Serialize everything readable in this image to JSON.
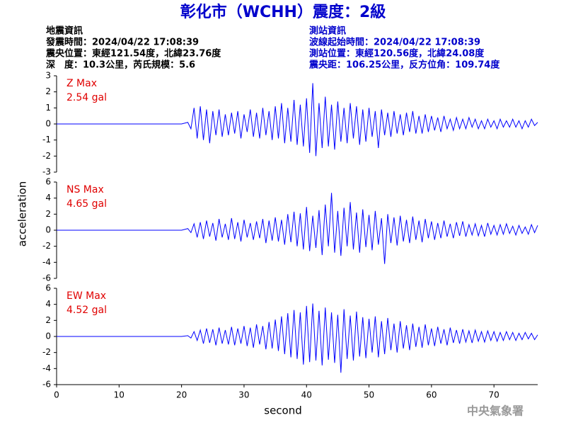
{
  "header": {
    "title": "彰化市（WCHH）震度：2級",
    "left": [
      "地震資訊",
      "發震時間：2024/04/22 17:08:39",
      "震央位置：東經121.54度，北緯23.76度",
      "深　度：10.3公里，芮氏規模：5.6"
    ],
    "right": [
      "測站資訊",
      "波線起始時間：2024/04/22 17:08:39",
      "測站位置：東經120.56度，北緯24.08度",
      "震央距：106.25公里，反方位角：109.74度"
    ]
  },
  "y_label": "acceleration",
  "footer": "中央氣象署",
  "chart_data": [
    {
      "type": "line",
      "label": "Z Max",
      "max_label": "2.54 gal",
      "color": "#0000ff",
      "ylim": [
        -3,
        3
      ],
      "yticks": [
        3,
        2,
        1,
        0,
        -1,
        -2,
        -3
      ],
      "xlim": [
        0,
        77
      ],
      "x": [
        0,
        5,
        10,
        15,
        20,
        21,
        21.5,
        22,
        22.5,
        23,
        23.5,
        24,
        24.5,
        25,
        25.5,
        26,
        26.5,
        27,
        27.5,
        28,
        28.5,
        29,
        29.5,
        30,
        30.5,
        31,
        31.5,
        32,
        32.5,
        33,
        33.5,
        34,
        34.5,
        35,
        35.5,
        36,
        36.5,
        37,
        37.5,
        38,
        38.5,
        39,
        39.5,
        40,
        40.5,
        41,
        41.5,
        42,
        42.5,
        43,
        43.5,
        44,
        44.5,
        45,
        45.5,
        46,
        46.5,
        47,
        47.5,
        48,
        48.5,
        49,
        49.5,
        50,
        50.5,
        51,
        51.5,
        52,
        52.5,
        53,
        53.5,
        54,
        54.5,
        55,
        55.5,
        56,
        56.5,
        57,
        57.5,
        58,
        58.5,
        59,
        59.5,
        60,
        60.5,
        61,
        61.5,
        62,
        62.5,
        63,
        63.5,
        64,
        64.5,
        65,
        65.5,
        66,
        66.5,
        67,
        67.5,
        68,
        68.5,
        69,
        69.5,
        70,
        70.5,
        71,
        71.5,
        72,
        72.5,
        73,
        73.5,
        74,
        74.5,
        75,
        75.5,
        76,
        76.5,
        77
      ],
      "values": [
        0,
        0,
        0,
        0,
        0,
        0.1,
        -0.3,
        1.0,
        -0.9,
        1.1,
        -1.0,
        0.9,
        -1.2,
        0.8,
        -0.7,
        0.9,
        -0.8,
        0.6,
        -0.7,
        0.7,
        -0.6,
        0.8,
        -0.9,
        0.6,
        -0.5,
        0.9,
        -0.8,
        0.7,
        -0.9,
        1.0,
        -0.7,
        0.8,
        -1.0,
        1.1,
        -0.9,
        1.3,
        -1.2,
        1.0,
        -1.1,
        1.5,
        -1.3,
        1.2,
        -1.4,
        1.6,
        -1.8,
        2.54,
        -2.0,
        1.3,
        -1.5,
        1.7,
        -1.4,
        1.2,
        -1.6,
        1.4,
        -1.1,
        1.0,
        -1.2,
        1.3,
        -0.9,
        1.1,
        -1.3,
        0.9,
        -1.1,
        1.0,
        -0.8,
        0.8,
        -1.5,
        0.9,
        -0.7,
        0.7,
        -0.8,
        0.8,
        -0.6,
        0.6,
        -0.7,
        0.7,
        -0.5,
        0.8,
        -0.6,
        0.5,
        -0.6,
        0.6,
        -0.5,
        0.5,
        -0.4,
        0.4,
        -0.5,
        0.5,
        -0.3,
        0.3,
        -0.4,
        0.4,
        -0.3,
        0.3,
        -0.3,
        0.4,
        -0.2,
        0.3,
        -0.3,
        0.2,
        -0.3,
        0.3,
        -0.2,
        0.2,
        -0.3,
        0.3,
        -0.2,
        0.2,
        -0.2,
        0.3,
        -0.2,
        0.2,
        -0.3,
        0.2,
        -0.2,
        0.3,
        -0.1,
        0.1
      ]
    },
    {
      "type": "line",
      "label": "NS Max",
      "max_label": "4.65 gal",
      "color": "#0000ff",
      "ylim": [
        -6,
        6
      ],
      "yticks": [
        6,
        4,
        2,
        0,
        -2,
        -4,
        -6
      ],
      "xlim": [
        0,
        77
      ],
      "x": [
        0,
        5,
        10,
        15,
        20,
        21,
        21.5,
        22,
        22.5,
        23,
        23.5,
        24,
        24.5,
        25,
        25.5,
        26,
        26.5,
        27,
        27.5,
        28,
        28.5,
        29,
        29.5,
        30,
        30.5,
        31,
        31.5,
        32,
        32.5,
        33,
        33.5,
        34,
        34.5,
        35,
        35.5,
        36,
        36.5,
        37,
        37.5,
        38,
        38.5,
        39,
        39.5,
        40,
        40.5,
        41,
        41.5,
        42,
        42.5,
        43,
        43.5,
        44,
        44.5,
        45,
        45.5,
        46,
        46.5,
        47,
        47.5,
        48,
        48.5,
        49,
        49.5,
        50,
        50.5,
        51,
        51.5,
        52,
        52.5,
        53,
        53.5,
        54,
        54.5,
        55,
        55.5,
        56,
        56.5,
        57,
        57.5,
        58,
        58.5,
        59,
        59.5,
        60,
        60.5,
        61,
        61.5,
        62,
        62.5,
        63,
        63.5,
        64,
        64.5,
        65,
        65.5,
        66,
        66.5,
        67,
        67.5,
        68,
        68.5,
        69,
        69.5,
        70,
        70.5,
        71,
        71.5,
        72,
        72.5,
        73,
        73.5,
        74,
        74.5,
        75,
        75.5,
        76,
        76.5,
        77
      ],
      "values": [
        0,
        0,
        0,
        0,
        0,
        0.2,
        -0.3,
        0.8,
        -0.9,
        1.0,
        -1.1,
        1.2,
        -0.8,
        0.9,
        -1.3,
        1.4,
        -0.9,
        0.8,
        -1.2,
        1.5,
        -1.1,
        1.0,
        -1.4,
        1.3,
        -0.9,
        0.9,
        -1.2,
        1.1,
        -1.0,
        1.4,
        -1.6,
        1.2,
        -1.3,
        1.6,
        -1.4,
        1.3,
        -1.8,
        2.0,
        -1.5,
        2.3,
        -2.0,
        2.1,
        -2.4,
        2.9,
        -2.6,
        1.8,
        -2.2,
        2.5,
        -3.1,
        3.2,
        -2.0,
        4.65,
        -2.8,
        2.4,
        -3.2,
        2.8,
        -2.0,
        3.5,
        -2.4,
        2.2,
        -2.8,
        2.6,
        -2.1,
        1.9,
        -2.5,
        2.4,
        -1.8,
        1.5,
        -4.2,
        2.0,
        -1.6,
        1.6,
        -1.9,
        1.8,
        -1.4,
        1.3,
        -1.6,
        1.7,
        -1.2,
        1.2,
        -1.5,
        1.4,
        -1.0,
        1.1,
        -1.2,
        0.9,
        -1.0,
        1.2,
        -0.8,
        0.8,
        -1.0,
        1.0,
        -0.7,
        1.1,
        -0.8,
        0.7,
        -0.6,
        0.8,
        -0.7,
        0.6,
        -0.8,
        0.9,
        -0.5,
        0.6,
        -0.6,
        0.7,
        -0.5,
        0.8,
        -0.4,
        0.5,
        -0.6,
        0.6,
        -0.4,
        0.4,
        -0.5,
        0.7,
        -0.3,
        0.6
      ]
    },
    {
      "type": "line",
      "label": "EW Max",
      "max_label": "4.52 gal",
      "color": "#0000ff",
      "ylim": [
        -6,
        6
      ],
      "yticks": [
        6,
        4,
        2,
        0,
        -2,
        -4,
        -6
      ],
      "xlim": [
        0,
        77
      ],
      "xticks": [
        0,
        10,
        20,
        30,
        40,
        50,
        60,
        70
      ],
      "x_label": "second",
      "x": [
        0,
        5,
        10,
        15,
        20,
        21,
        21.5,
        22,
        22.5,
        23,
        23.5,
        24,
        24.5,
        25,
        25.5,
        26,
        26.5,
        27,
        27.5,
        28,
        28.5,
        29,
        29.5,
        30,
        30.5,
        31,
        31.5,
        32,
        32.5,
        33,
        33.5,
        34,
        34.5,
        35,
        35.5,
        36,
        36.5,
        37,
        37.5,
        38,
        38.5,
        39,
        39.5,
        40,
        40.5,
        41,
        41.5,
        42,
        42.5,
        43,
        43.5,
        44,
        44.5,
        45,
        45.5,
        46,
        46.5,
        47,
        47.5,
        48,
        48.5,
        49,
        49.5,
        50,
        50.5,
        51,
        51.5,
        52,
        52.5,
        53,
        53.5,
        54,
        54.5,
        55,
        55.5,
        56,
        56.5,
        57,
        57.5,
        58,
        58.5,
        59,
        59.5,
        60,
        60.5,
        61,
        61.5,
        62,
        62.5,
        63,
        63.5,
        64,
        64.5,
        65,
        65.5,
        66,
        66.5,
        67,
        67.5,
        68,
        68.5,
        69,
        69.5,
        70,
        70.5,
        71,
        71.5,
        72,
        72.5,
        73,
        73.5,
        74,
        74.5,
        75,
        75.5,
        76,
        76.5,
        77
      ],
      "values": [
        0,
        0,
        0,
        0,
        0,
        0.1,
        -0.2,
        0.6,
        -0.5,
        0.8,
        -0.9,
        1.0,
        -0.8,
        0.9,
        -1.1,
        1.1,
        -0.9,
        0.8,
        -1.0,
        1.2,
        -1.1,
        1.0,
        -0.9,
        1.3,
        -1.2,
        1.1,
        -1.4,
        1.5,
        -1.0,
        1.3,
        -1.6,
        1.8,
        -1.5,
        2.1,
        -1.8,
        2.5,
        -2.2,
        2.9,
        -2.6,
        3.3,
        -2.8,
        3.0,
        -3.5,
        3.8,
        -3.2,
        4.1,
        -3.0,
        3.2,
        -3.6,
        3.6,
        -2.9,
        3.0,
        -3.3,
        2.7,
        -4.52,
        3.4,
        -2.8,
        2.6,
        -3.0,
        3.1,
        -2.5,
        2.4,
        -2.7,
        2.2,
        -2.0,
        2.5,
        -2.6,
        1.9,
        -2.2,
        2.3,
        -1.7,
        1.6,
        -2.0,
        1.9,
        -1.5,
        1.4,
        -1.7,
        1.6,
        -1.3,
        1.2,
        -1.4,
        1.5,
        -1.1,
        1.0,
        -1.2,
        1.2,
        -0.9,
        0.9,
        -1.1,
        1.1,
        -0.8,
        0.8,
        -0.9,
        0.9,
        -0.7,
        0.7,
        -0.8,
        0.8,
        -0.6,
        0.6,
        -0.7,
        0.7,
        -0.5,
        0.6,
        -0.6,
        0.5,
        -0.5,
        0.6,
        -0.4,
        0.5,
        -0.5,
        0.4,
        -0.4,
        0.5,
        -0.3,
        0.4,
        -0.4,
        0.2
      ]
    }
  ]
}
